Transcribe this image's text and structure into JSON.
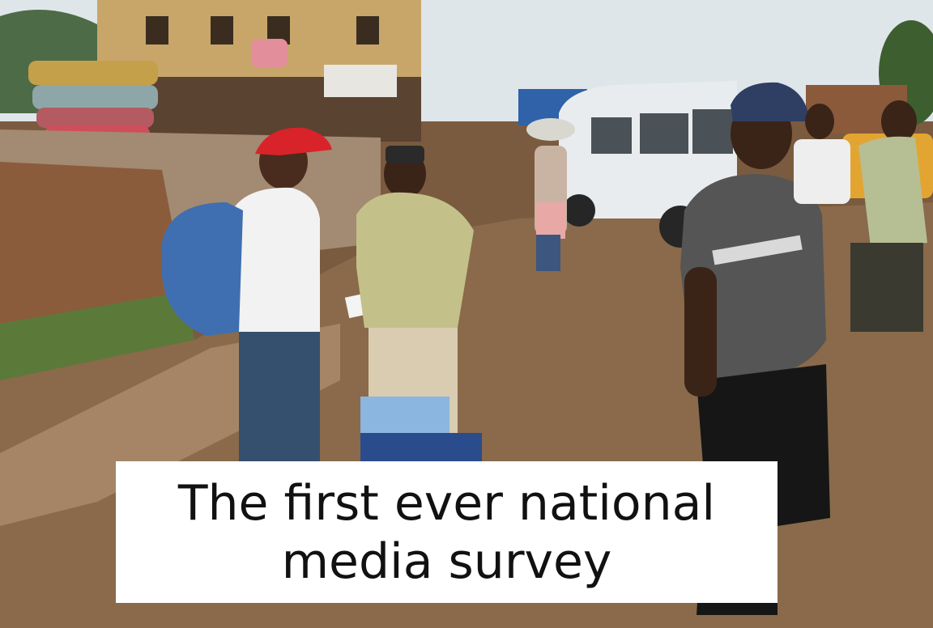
{
  "caption": {
    "line1": "The first ever national",
    "line2": "media survey"
  },
  "colors": {
    "sky": "#dfe6ea",
    "dirt_road": "#8a6a4a",
    "van": "#e9ecee",
    "red_cap": "#d8232a",
    "backpack": "#3f6fb0",
    "caption_bg": "#ffffff",
    "caption_text": "#111111"
  }
}
